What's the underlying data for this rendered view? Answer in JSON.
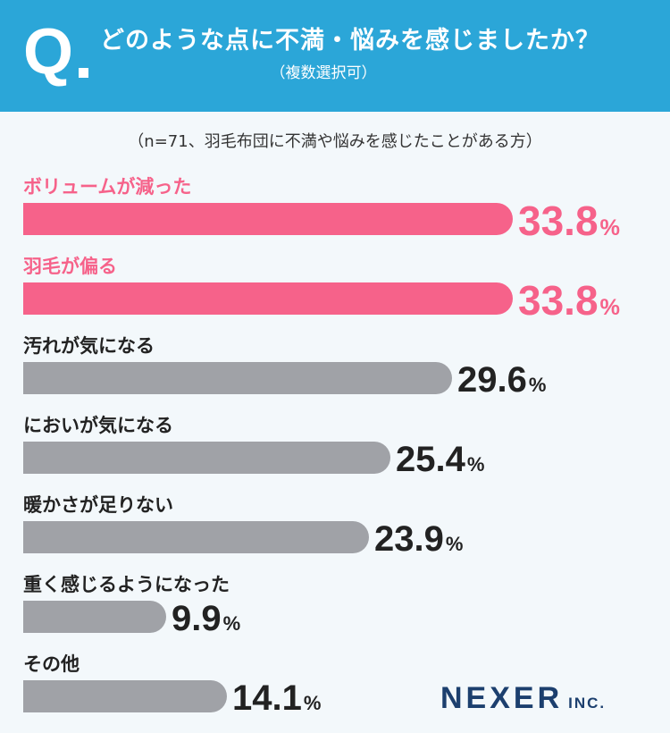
{
  "header": {
    "q_mark": "Q",
    "title": "どのような点に不満・悩みを感じましたか？",
    "subtitle": "（複数選択可）"
  },
  "note": "（n=71、羽毛布団に不満や悩みを感じたことがある方）",
  "colors": {
    "highlight": "#f6628a",
    "normal": "#a0a2a7",
    "header_bg": "#2ba6d8",
    "value_normal": "#222222"
  },
  "chart_data": {
    "type": "bar",
    "orientation": "horizontal",
    "title": "どのような点に不満・悩みを感じましたか？",
    "unit": "%",
    "categories": [
      "ボリュームが減った",
      "羽毛が偏る",
      "汚れが気になる",
      "においが気になる",
      "暖かさが足りない",
      "重く感じるようになった",
      "その他"
    ],
    "values": [
      33.8,
      33.8,
      29.6,
      25.4,
      23.9,
      9.9,
      14.1
    ],
    "highlighted": [
      true,
      true,
      false,
      false,
      false,
      false,
      false
    ],
    "xlim": [
      0,
      40
    ]
  },
  "footer": {
    "logo_main": "NEXER",
    "logo_sub": "INC."
  }
}
